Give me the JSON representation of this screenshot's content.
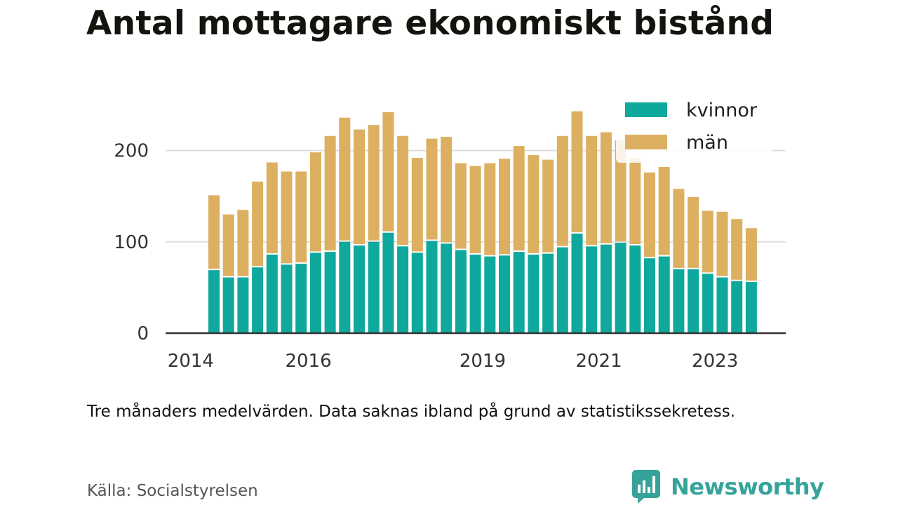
{
  "title": "Antal mottagare ekonomiskt bistånd",
  "note": "Tre månaders medelvärden. Data saknas ibland på grund av statistikssekretess.",
  "source": "Källa: Socialstyrelsen",
  "brand": {
    "name": "Newsworthy",
    "icon": "newsworthy-logo-icon"
  },
  "colors": {
    "kvinnor": "#0fa89c",
    "man": "#dcb060",
    "grid": "#dedede",
    "axis": "#333333"
  },
  "chart_data": {
    "type": "bar",
    "stacked": true,
    "ylim": [
      0,
      250
    ],
    "yticks": [
      0,
      100,
      200
    ],
    "x_ticks": [
      {
        "label": "2014",
        "index": -1.6
      },
      {
        "label": "2016",
        "index": 6.5
      },
      {
        "label": "2019",
        "index": 18.5
      },
      {
        "label": "2021",
        "index": 26.5
      },
      {
        "label": "2023",
        "index": 34.5
      }
    ],
    "legend": {
      "position": "top-right",
      "entries": [
        "kvinnor",
        "män"
      ]
    },
    "grid": true,
    "series": [
      {
        "name": "kvinnor",
        "values": [
          69,
          61,
          61,
          72,
          86,
          75,
          76,
          88,
          89,
          100,
          96,
          100,
          110,
          95,
          88,
          101,
          98,
          91,
          86,
          84,
          85,
          89,
          86,
          87,
          94,
          109,
          95,
          97,
          99,
          96,
          82,
          84,
          70,
          70,
          65,
          61,
          57,
          56
        ]
      },
      {
        "name": "män",
        "values": [
          82,
          69,
          74,
          94,
          101,
          102,
          101,
          110,
          127,
          136,
          127,
          128,
          132,
          121,
          104,
          112,
          117,
          95,
          97,
          102,
          106,
          116,
          109,
          103,
          122,
          134,
          121,
          123,
          112,
          96,
          94,
          98,
          88,
          79,
          69,
          72,
          68,
          59
        ]
      }
    ]
  }
}
